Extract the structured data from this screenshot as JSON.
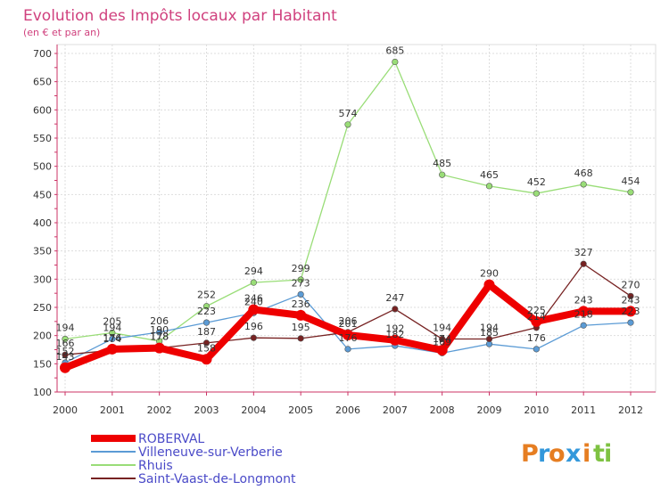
{
  "chart_data": {
    "type": "line",
    "title": "Evolution des Impôts locaux par Habitant",
    "subtitle": "(en € et par an)",
    "xlabel": "",
    "ylabel": "",
    "x": [
      "2000",
      "2001",
      "2002",
      "2003",
      "2004",
      "2005",
      "2006",
      "2007",
      "2008",
      "2009",
      "2010",
      "2011",
      "2012"
    ],
    "ylim": [
      100,
      700
    ],
    "yticks": [
      "100",
      "150",
      "200",
      "250",
      "300",
      "350",
      "400",
      "450",
      "500",
      "550",
      "600",
      "650",
      "700"
    ],
    "legend_position": "bottom-left",
    "series": [
      {
        "name": "ROBERVAL",
        "color": "#ee0000",
        "values": [
          143,
          176,
          178,
          158,
          246,
          236,
          201,
          192,
          174,
          290,
          225,
          243,
          243
        ]
      },
      {
        "name": "Villeneuve-sur-Verberie",
        "color": "#5b9bd5",
        "values": [
          152,
          194,
          206,
          223,
          240,
          273,
          176,
          182,
          169,
          185,
          176,
          218,
          223
        ]
      },
      {
        "name": "Rhuis",
        "color": "#99dd77",
        "values": [
          194,
          205,
          190,
          252,
          294,
          299,
          574,
          685,
          485,
          465,
          452,
          468,
          454
        ]
      },
      {
        "name": "Saint-Vaast-de-Longmont",
        "color": "#772222",
        "values": [
          166,
          174,
          178,
          187,
          196,
          195,
          206,
          247,
          194,
          194,
          214,
          327,
          270
        ]
      }
    ]
  },
  "brand": {
    "logo_text": "Proxiti",
    "letters": [
      {
        "ch": "P",
        "color": "#e67e22"
      },
      {
        "ch": "r",
        "color": "#3498db"
      },
      {
        "ch": "o",
        "color": "#e67e22"
      },
      {
        "ch": "x",
        "color": "#3498db"
      },
      {
        "ch": "i",
        "color": "#e67e22"
      },
      {
        "ch": "t",
        "color": "#7ec242"
      },
      {
        "ch": "i",
        "color": "#7ec242"
      }
    ]
  }
}
